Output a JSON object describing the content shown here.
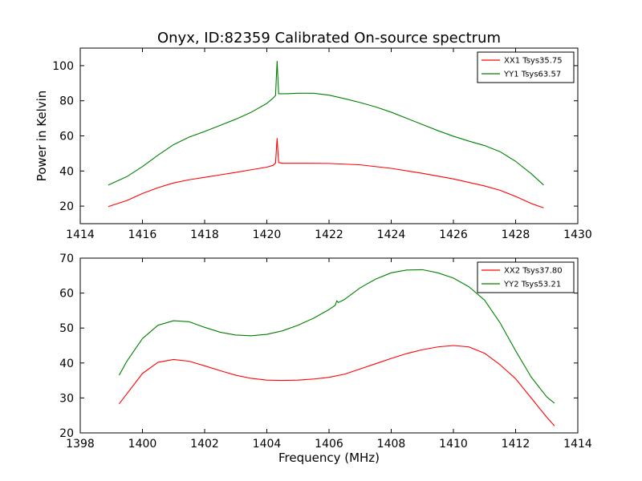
{
  "title": "Onyx, ID:82359 Calibrated On-source spectrum",
  "chart_data": [
    {
      "type": "line",
      "xlabel": "",
      "ylabel": "Power in Kelvin",
      "xlim": [
        1414,
        1430
      ],
      "ylim": [
        10,
        110
      ],
      "xticks": [
        1414,
        1416,
        1418,
        1420,
        1422,
        1424,
        1426,
        1428,
        1430
      ],
      "yticks": [
        20,
        40,
        60,
        80,
        100
      ],
      "legend_position": "top-right",
      "series": [
        {
          "name": "XX1 Tsys35.75",
          "color": "#ff0000",
          "points": [
            [
              1414.9,
              19.7
            ],
            [
              1415.5,
              23.2
            ],
            [
              1416,
              27.2
            ],
            [
              1416.5,
              30.5
            ],
            [
              1417,
              33.2
            ],
            [
              1417.5,
              35
            ],
            [
              1418,
              36.4
            ],
            [
              1418.5,
              37.8
            ],
            [
              1419,
              39.2
            ],
            [
              1419.5,
              40.7
            ],
            [
              1420,
              42.2
            ],
            [
              1420.2,
              43.2
            ],
            [
              1420.28,
              44.5
            ],
            [
              1420.33,
              58.5
            ],
            [
              1420.38,
              44.8
            ],
            [
              1420.5,
              44.4
            ],
            [
              1421,
              44.4
            ],
            [
              1422,
              44.3
            ],
            [
              1423,
              43.5
            ],
            [
              1424,
              41.5
            ],
            [
              1425,
              38.7
            ],
            [
              1426,
              35.5
            ],
            [
              1427,
              31.5
            ],
            [
              1427.5,
              29
            ],
            [
              1428,
              25.5
            ],
            [
              1428.5,
              21.5
            ],
            [
              1428.9,
              19
            ]
          ]
        },
        {
          "name": "YY1 Tsys63.57",
          "color": "#008000",
          "points": [
            [
              1414.9,
              32
            ],
            [
              1415.5,
              36.8
            ],
            [
              1416,
              42.5
            ],
            [
              1416.5,
              49
            ],
            [
              1417,
              55
            ],
            [
              1417.5,
              59.3
            ],
            [
              1418,
              62.5
            ],
            [
              1418.5,
              66
            ],
            [
              1419,
              69.5
            ],
            [
              1419.5,
              73.5
            ],
            [
              1420,
              78.5
            ],
            [
              1420.2,
              81.5
            ],
            [
              1420.28,
              83
            ],
            [
              1420.33,
              102.5
            ],
            [
              1420.38,
              84
            ],
            [
              1420.6,
              84
            ],
            [
              1421,
              84.3
            ],
            [
              1421.5,
              84.3
            ],
            [
              1422,
              83.2
            ],
            [
              1422.5,
              81.2
            ],
            [
              1423,
              79
            ],
            [
              1423.5,
              76.5
            ],
            [
              1424,
              73.5
            ],
            [
              1424.5,
              70
            ],
            [
              1425,
              66.5
            ],
            [
              1425.5,
              63
            ],
            [
              1426,
              59.8
            ],
            [
              1426.5,
              57
            ],
            [
              1427,
              54.5
            ],
            [
              1427.5,
              51
            ],
            [
              1428,
              45.5
            ],
            [
              1428.5,
              38.5
            ],
            [
              1428.9,
              32
            ]
          ]
        }
      ]
    },
    {
      "type": "line",
      "xlabel": "Frequency (MHz)",
      "ylabel": "",
      "xlim": [
        1398,
        1414
      ],
      "ylim": [
        20,
        70
      ],
      "xticks": [
        1398,
        1400,
        1402,
        1404,
        1406,
        1408,
        1410,
        1412,
        1414
      ],
      "yticks": [
        20,
        30,
        40,
        50,
        60,
        70
      ],
      "legend_position": "top-right",
      "series": [
        {
          "name": "XX2 Tsys37.80",
          "color": "#ff0000",
          "points": [
            [
              1399.25,
              28.3
            ],
            [
              1399.5,
              31.2
            ],
            [
              1400,
              37
            ],
            [
              1400.5,
              40.2
            ],
            [
              1401,
              41
            ],
            [
              1401.5,
              40.5
            ],
            [
              1402,
              39.2
            ],
            [
              1402.5,
              37.8
            ],
            [
              1403,
              36.5
            ],
            [
              1403.5,
              35.6
            ],
            [
              1404,
              35.1
            ],
            [
              1404.5,
              35
            ],
            [
              1405,
              35.1
            ],
            [
              1405.5,
              35.4
            ],
            [
              1406,
              35.9
            ],
            [
              1406.5,
              36.8
            ],
            [
              1407,
              38.3
            ],
            [
              1407.5,
              39.8
            ],
            [
              1408,
              41.3
            ],
            [
              1408.5,
              42.7
            ],
            [
              1409,
              43.8
            ],
            [
              1409.5,
              44.6
            ],
            [
              1410,
              45
            ],
            [
              1410.5,
              44.6
            ],
            [
              1411,
              42.8
            ],
            [
              1411.5,
              39.5
            ],
            [
              1412,
              35.5
            ],
            [
              1412.5,
              30
            ],
            [
              1413,
              24.5
            ],
            [
              1413.25,
              22
            ]
          ]
        },
        {
          "name": "YY2 Tsys53.21",
          "color": "#008000",
          "points": [
            [
              1399.25,
              36.5
            ],
            [
              1399.5,
              40.5
            ],
            [
              1400,
              47
            ],
            [
              1400.5,
              50.8
            ],
            [
              1401,
              52.1
            ],
            [
              1401.5,
              51.8
            ],
            [
              1402,
              50.2
            ],
            [
              1402.5,
              48.8
            ],
            [
              1403,
              48
            ],
            [
              1403.5,
              47.8
            ],
            [
              1404,
              48.2
            ],
            [
              1404.5,
              49.2
            ],
            [
              1405,
              50.8
            ],
            [
              1405.5,
              52.8
            ],
            [
              1406,
              55.3
            ],
            [
              1406.2,
              56.5
            ],
            [
              1406.25,
              57.8
            ],
            [
              1406.3,
              57.3
            ],
            [
              1406.5,
              58.2
            ],
            [
              1407,
              61.5
            ],
            [
              1407.5,
              64
            ],
            [
              1408,
              65.8
            ],
            [
              1408.5,
              66.6
            ],
            [
              1409,
              66.7
            ],
            [
              1409.5,
              65.8
            ],
            [
              1410,
              64.3
            ],
            [
              1410.5,
              61.8
            ],
            [
              1411,
              58
            ],
            [
              1411.5,
              51.5
            ],
            [
              1412,
              43.5
            ],
            [
              1412.5,
              36
            ],
            [
              1413,
              30.3
            ],
            [
              1413.25,
              28.5
            ]
          ]
        }
      ]
    }
  ]
}
